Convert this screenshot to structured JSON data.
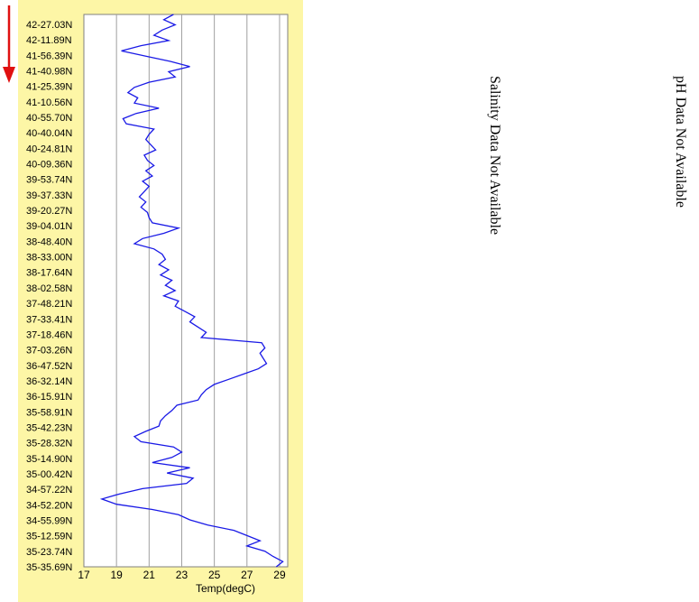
{
  "chart_data": {
    "type": "line",
    "title": "",
    "xlabel": "Temp(degC)",
    "ylabel": "",
    "xlim": [
      17,
      29.5
    ],
    "x_ticks": [
      "17",
      "19",
      "21",
      "23",
      "25",
      "27",
      "29"
    ],
    "y_ticks": [
      "42-27.03N",
      "42-11.89N",
      "41-56.39N",
      "41-40.98N",
      "41-25.39N",
      "41-10.56N",
      "40-55.70N",
      "40-40.04N",
      "40-24.81N",
      "40-09.36N",
      "39-53.74N",
      "39-37.33N",
      "39-20.27N",
      "39-04.01N",
      "38-48.40N",
      "38-33.00N",
      "38-17.64N",
      "38-02.58N",
      "37-48.21N",
      "37-33.41N",
      "37-18.46N",
      "37-03.26N",
      "36-47.52N",
      "36-32.14N",
      "36-15.91N",
      "35-58.91N",
      "35-42.23N",
      "35-28.32N",
      "35-14.90N",
      "35-00.42N",
      "34-57.22N",
      "34-52.20N",
      "34-55.99N",
      "35-12.59N",
      "35-23.74N",
      "35-35.69N"
    ],
    "grid": true,
    "series": [
      {
        "values": [
          22.5,
          21.9,
          22.6,
          21.8,
          21.3,
          22.2,
          20.5,
          19.3,
          20.8,
          22.3,
          23.5,
          22.2,
          22.6,
          21.0,
          20.1,
          19.7,
          20.3,
          20.1,
          21.6,
          20.2,
          19.4,
          19.6,
          21.3,
          21.0,
          20.8,
          21.1,
          21.4,
          20.7,
          20.9,
          21.3,
          20.8,
          21.2,
          20.6,
          21.0,
          20.7,
          20.4,
          20.8,
          20.5,
          20.9,
          21.0,
          21.2,
          22.8,
          21.9,
          20.6,
          20.1,
          21.3,
          21.8,
          22.0,
          21.6,
          22.2,
          21.7,
          22.4,
          22.0,
          22.6,
          21.9,
          22.8,
          22.6,
          23.2,
          23.8,
          23.5,
          24.0,
          24.5,
          24.2,
          27.9,
          28.1,
          27.8,
          28.0,
          28.2,
          27.7,
          26.8,
          25.9,
          25.0,
          24.5,
          24.2,
          24.0,
          22.7,
          22.4,
          22.0,
          21.7,
          21.6,
          20.8,
          20.1,
          20.5,
          22.5,
          23.0,
          22.4,
          21.2,
          23.5,
          22.1,
          23.7,
          23.3,
          20.6,
          19.2,
          18.1,
          19.0,
          21.2,
          22.8,
          23.5,
          24.6,
          26.2,
          27.0,
          27.8,
          27.0,
          28.1,
          28.6,
          29.2,
          28.8
        ]
      }
    ],
    "line_color": "#1a1ae6",
    "panel_color": "#fdf6a6",
    "arrow_color": "#e01010"
  },
  "notes": {
    "salinity": "Salinity Data Not Available",
    "ph": "pH Data Not Available"
  }
}
